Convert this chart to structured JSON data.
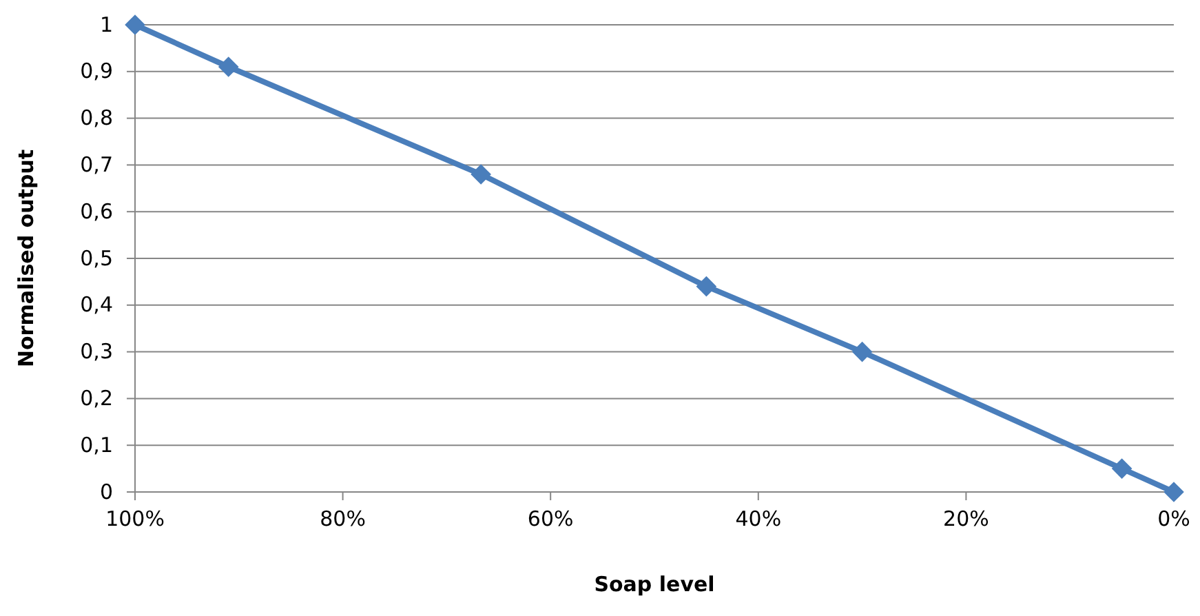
{
  "chart_data": {
    "type": "line",
    "xlabel": "Soap level",
    "ylabel": "Normalised output",
    "x": [
      100,
      91,
      66.7,
      45,
      30,
      5,
      0
    ],
    "series": [
      {
        "color": "#4a7ebb",
        "values": [
          1,
          0.91,
          0.68,
          0.44,
          0.3,
          0.05,
          0
        ]
      }
    ],
    "xlim": [
      100,
      0
    ],
    "xticks": [
      {
        "value": 100,
        "label": "100%"
      },
      {
        "value": 80,
        "label": "80%"
      },
      {
        "value": 60,
        "label": "60%"
      },
      {
        "value": 40,
        "label": "40%"
      },
      {
        "value": 20,
        "label": "20%"
      },
      {
        "value": 0,
        "label": "0%"
      }
    ],
    "ylim": [
      0,
      1
    ],
    "yticks": [
      {
        "value": 0,
        "label": "0"
      },
      {
        "value": 0.1,
        "label": "0,1"
      },
      {
        "value": 0.2,
        "label": "0,2"
      },
      {
        "value": 0.3,
        "label": "0,3"
      },
      {
        "value": 0.4,
        "label": "0,4"
      },
      {
        "value": 0.5,
        "label": "0,5"
      },
      {
        "value": 0.6,
        "label": "0,6"
      },
      {
        "value": 0.7,
        "label": "0,7"
      },
      {
        "value": 0.8,
        "label": "0,8"
      },
      {
        "value": 0.9,
        "label": "0,9"
      },
      {
        "value": 1,
        "label": "1"
      }
    ],
    "grid": "y",
    "marker": "diamond",
    "line_style": "solid"
  }
}
